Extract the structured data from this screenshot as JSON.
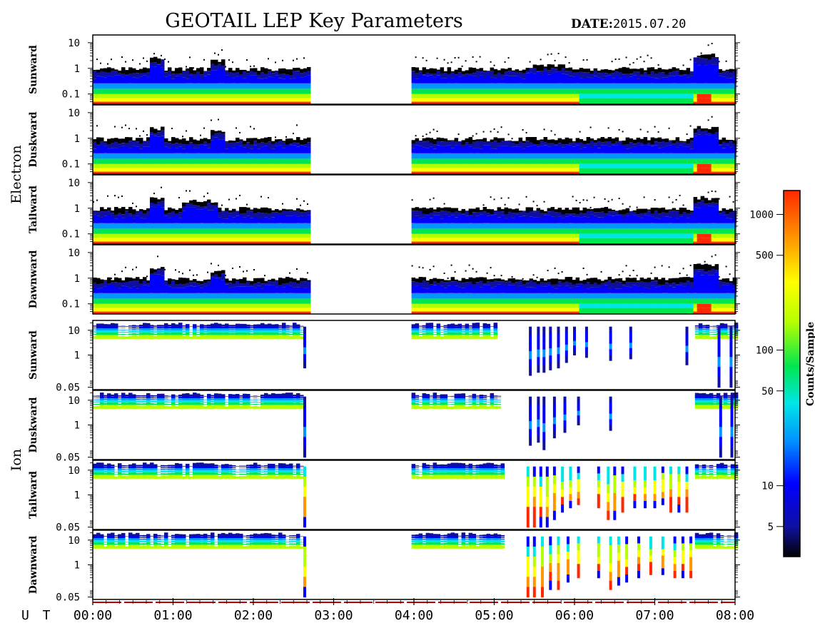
{
  "header": {
    "title": "GEOTAIL LEP Key Parameters",
    "date_label": "DATE:",
    "date_value": "2015.07.20"
  },
  "x_axis": {
    "label": "U T",
    "ticks": [
      "00:00",
      "01:00",
      "02:00",
      "03:00",
      "04:00",
      "05:00",
      "06:00",
      "07:00",
      "08:00"
    ]
  },
  "groups": [
    {
      "name": "Electron"
    },
    {
      "name": "Ion"
    }
  ],
  "colorbar": {
    "label": "Counts/Sample",
    "ticks": [
      "1000",
      "500",
      "100",
      "50",
      "10",
      "5"
    ],
    "tick_values": [
      1000,
      500,
      100,
      50,
      10,
      5
    ],
    "range": [
      3,
      1500
    ],
    "scale": "log",
    "colormap": [
      "#000000",
      "#1010a0",
      "#0000ff",
      "#0096ff",
      "#00e6e6",
      "#00e650",
      "#b4ff00",
      "#ffff00",
      "#ff9600",
      "#ff2800"
    ]
  },
  "chart_data": {
    "type": "heatmap",
    "x_unit": "UT hour",
    "xlim": [
      0,
      8
    ],
    "data_gaps": [
      [
        2.67,
        3.97
      ]
    ],
    "panels": [
      {
        "group": "Electron",
        "label": "Sunward",
        "ytick_labels": [
          "10",
          "1",
          "0.1"
        ],
        "ytick_values": [
          10,
          1,
          0.1
        ],
        "ylim": [
          0.04,
          20
        ],
        "yscale": "log",
        "profile": "electron",
        "bands": [
          [
            0,
            2.67
          ],
          [
            3.97,
            8
          ]
        ],
        "features": [
          {
            "x": [
              0.7,
              0.85
            ],
            "peak": 4
          },
          {
            "x": [
              1.45,
              1.6
            ],
            "peak": 3
          },
          {
            "x": [
              5.35,
              5.9
            ],
            "peak": 2
          },
          {
            "x": [
              7.45,
              7.75
            ],
            "peak": 5
          }
        ],
        "low_counts": [
          [
            6.05,
            7.45
          ]
        ],
        "high_counts": [
          [
            7.5,
            7.7
          ]
        ]
      },
      {
        "group": "Electron",
        "label": "Duskward",
        "ytick_labels": [
          "10",
          "1",
          "0.1"
        ],
        "ytick_values": [
          10,
          1,
          0.1
        ],
        "ylim": [
          0.04,
          20
        ],
        "yscale": "log",
        "profile": "electron",
        "bands": [
          [
            0,
            2.67
          ],
          [
            3.97,
            8
          ]
        ],
        "features": [
          {
            "x": [
              0.7,
              0.85
            ],
            "peak": 4
          },
          {
            "x": [
              1.45,
              1.6
            ],
            "peak": 3
          },
          {
            "x": [
              7.45,
              7.75
            ],
            "peak": 4
          }
        ],
        "low_counts": [
          [
            6.05,
            7.45
          ]
        ],
        "high_counts": [
          [
            7.5,
            7.7
          ]
        ]
      },
      {
        "group": "Electron",
        "label": "Tailward",
        "ytick_labels": [
          "10",
          "1",
          "0.1"
        ],
        "ytick_values": [
          10,
          1,
          0.1
        ],
        "ylim": [
          0.04,
          20
        ],
        "yscale": "log",
        "profile": "electron",
        "bands": [
          [
            0,
            2.67
          ],
          [
            3.97,
            8
          ]
        ],
        "features": [
          {
            "x": [
              0.7,
              0.85
            ],
            "peak": 4
          },
          {
            "x": [
              1.1,
              1.55
            ],
            "peak": 3
          },
          {
            "x": [
              7.45,
              7.75
            ],
            "peak": 4
          }
        ],
        "low_counts": [
          [
            6.05,
            7.45
          ]
        ],
        "high_counts": [
          [
            7.5,
            7.7
          ]
        ]
      },
      {
        "group": "Electron",
        "label": "Dawnward",
        "ytick_labels": [
          "10",
          "1",
          "0.1"
        ],
        "ytick_values": [
          10,
          1,
          0.1
        ],
        "ylim": [
          0.04,
          20
        ],
        "yscale": "log",
        "profile": "electron",
        "bands": [
          [
            0,
            2.67
          ],
          [
            3.97,
            8
          ]
        ],
        "features": [
          {
            "x": [
              0.7,
              0.85
            ],
            "peak": 4
          },
          {
            "x": [
              1.45,
              1.6
            ],
            "peak": 3
          },
          {
            "x": [
              7.45,
              7.75
            ],
            "peak": 5
          }
        ],
        "low_counts": [
          [
            6.05,
            7.45
          ]
        ],
        "high_counts": [
          [
            7.5,
            7.7
          ]
        ]
      },
      {
        "group": "Ion",
        "label": "Sunward",
        "ytick_labels": [
          "10",
          "1",
          "0.05"
        ],
        "ytick_values": [
          10,
          1,
          0.05
        ],
        "ylim": [
          0.04,
          25
        ],
        "yscale": "log",
        "profile": "ion",
        "bands": [
          [
            0,
            2.62
          ],
          [
            3.97,
            5.0
          ],
          [
            7.5,
            8
          ]
        ],
        "spikes": [
          [
            2.64,
            0.3
          ],
          [
            5.45,
            0.15
          ],
          [
            5.55,
            0.2
          ],
          [
            5.62,
            0.2
          ],
          [
            5.7,
            0.25
          ],
          [
            5.8,
            0.3
          ],
          [
            5.9,
            0.5
          ],
          [
            6.0,
            1
          ],
          [
            6.15,
            0.8
          ],
          [
            6.45,
            0.6
          ],
          [
            6.7,
            0.7
          ],
          [
            7.4,
            0.4
          ],
          [
            7.8,
            0.05
          ],
          [
            7.95,
            0.05
          ]
        ],
        "spike_intensity": "low"
      },
      {
        "group": "Ion",
        "label": "Duskward",
        "ytick_labels": [
          "10",
          "1",
          "0.05"
        ],
        "ytick_values": [
          10,
          1,
          0.05
        ],
        "ylim": [
          0.04,
          25
        ],
        "yscale": "log",
        "profile": "ion",
        "bands": [
          [
            0,
            2.62
          ],
          [
            3.97,
            5.05
          ],
          [
            7.5,
            8
          ]
        ],
        "spikes": [
          [
            2.64,
            0.05
          ],
          [
            5.45,
            0.15
          ],
          [
            5.55,
            0.2
          ],
          [
            5.62,
            0.1
          ],
          [
            5.75,
            0.3
          ],
          [
            5.88,
            0.5
          ],
          [
            6.05,
            1
          ],
          [
            6.45,
            0.6
          ],
          [
            7.82,
            0.05
          ],
          [
            7.96,
            0.05
          ]
        ],
        "spike_intensity": "low"
      },
      {
        "group": "Ion",
        "label": "Tailward",
        "ytick_labels": [
          "10",
          "1",
          "0.05"
        ],
        "ytick_values": [
          10,
          1,
          0.05
        ],
        "ylim": [
          0.04,
          25
        ],
        "yscale": "log",
        "profile": "ion",
        "bands": [
          [
            0,
            2.62
          ],
          [
            3.97,
            5.1
          ],
          [
            7.5,
            8
          ]
        ],
        "spikes": [
          [
            2.64,
            0.05
          ],
          [
            5.42,
            0.05
          ],
          [
            5.5,
            0.05
          ],
          [
            5.58,
            0.05
          ],
          [
            5.66,
            0.05
          ],
          [
            5.75,
            0.1
          ],
          [
            5.85,
            0.2
          ],
          [
            5.95,
            0.3
          ],
          [
            6.05,
            0.4
          ],
          [
            6.3,
            0.3
          ],
          [
            6.42,
            0.1
          ],
          [
            6.5,
            0.1
          ],
          [
            6.6,
            0.2
          ],
          [
            6.75,
            0.3
          ],
          [
            6.88,
            0.3
          ],
          [
            7.0,
            0.3
          ],
          [
            7.1,
            0.4
          ],
          [
            7.2,
            0.2
          ],
          [
            7.3,
            0.2
          ],
          [
            7.4,
            0.2
          ]
        ],
        "spike_intensity": "high"
      },
      {
        "group": "Ion",
        "label": "Dawnward",
        "ytick_labels": [
          "10",
          "1",
          "0.05"
        ],
        "ytick_values": [
          10,
          1,
          0.05
        ],
        "ylim": [
          0.04,
          25
        ],
        "yscale": "log",
        "profile": "ion",
        "bands": [
          [
            0,
            2.62
          ],
          [
            3.97,
            5.1
          ],
          [
            7.5,
            8
          ]
        ],
        "spikes": [
          [
            2.64,
            0.05
          ],
          [
            5.42,
            0.05
          ],
          [
            5.5,
            0.05
          ],
          [
            5.6,
            0.05
          ],
          [
            5.7,
            0.1
          ],
          [
            5.8,
            0.1
          ],
          [
            5.92,
            0.2
          ],
          [
            6.05,
            0.3
          ],
          [
            6.3,
            0.3
          ],
          [
            6.45,
            0.1
          ],
          [
            6.55,
            0.15
          ],
          [
            6.65,
            0.2
          ],
          [
            6.8,
            0.3
          ],
          [
            6.95,
            0.4
          ],
          [
            7.1,
            0.4
          ],
          [
            7.25,
            0.3
          ],
          [
            7.35,
            0.3
          ],
          [
            7.45,
            0.3
          ]
        ],
        "spike_intensity": "high"
      }
    ]
  }
}
